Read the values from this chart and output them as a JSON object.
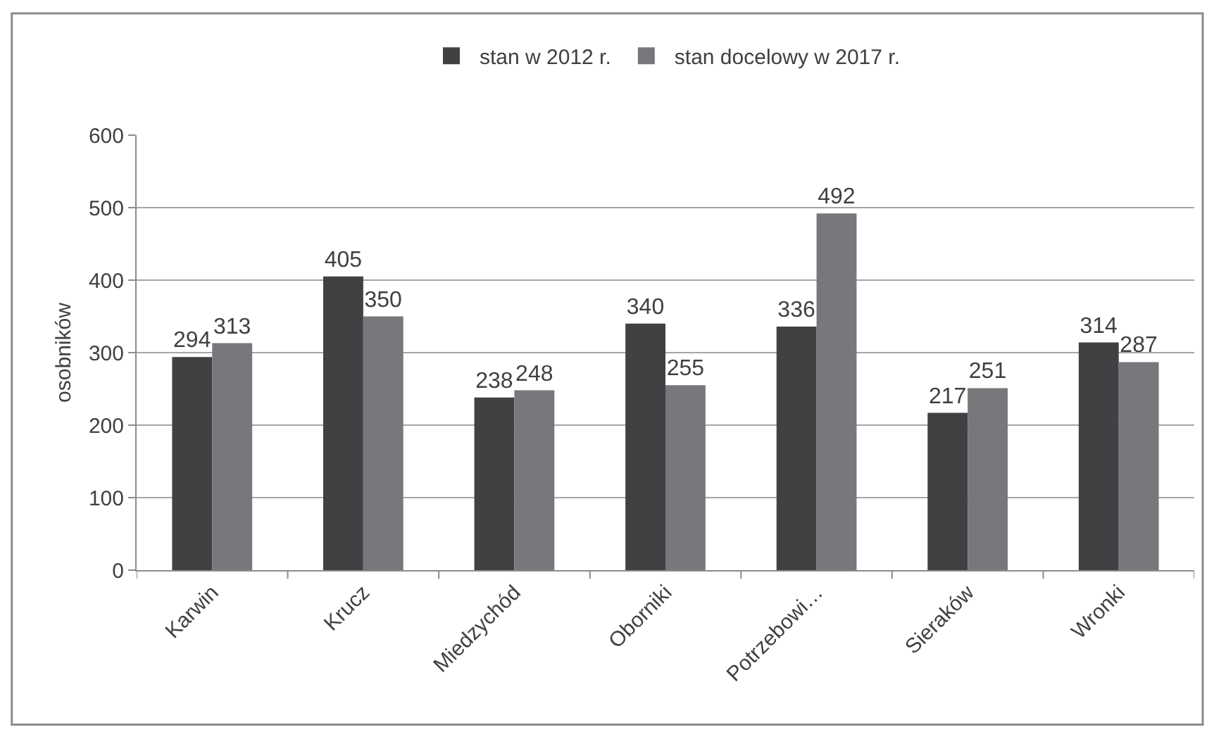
{
  "chart_data": {
    "type": "bar",
    "categories": [
      "Karwin",
      "Krucz",
      "Miedzychód",
      "Oborniki",
      "Potrzebowi…",
      "Sieraków",
      "Wronki"
    ],
    "series": [
      {
        "name": "stan w 2012 r.",
        "color": "#404143",
        "values": [
          294,
          405,
          238,
          340,
          336,
          217,
          314
        ]
      },
      {
        "name": "stan docelowy w 2017 r.",
        "color": "#77787b",
        "values": [
          313,
          350,
          248,
          255,
          492,
          251,
          287
        ]
      }
    ],
    "ylabel": "osobników",
    "ylim": [
      0,
      600
    ],
    "yticks": [
      0,
      100,
      200,
      300,
      400,
      500,
      600
    ],
    "grid": "y",
    "legend": "top",
    "data_labels": true
  }
}
